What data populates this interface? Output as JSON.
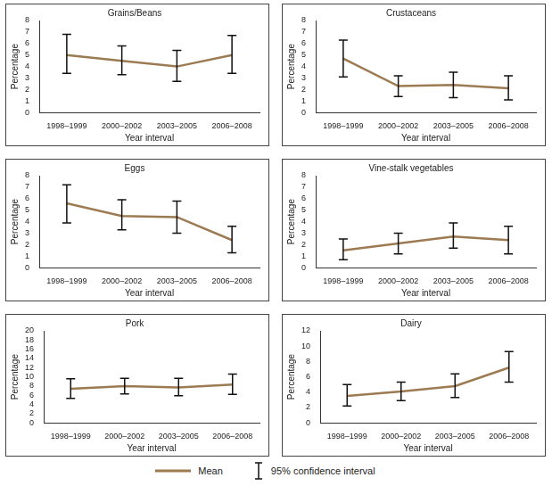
{
  "chart_data": [
    {
      "type": "line",
      "title": "Grains/Beans",
      "x_label": "Year interval",
      "y_label": "Percentage",
      "categories": [
        "1998–1999",
        "2000–2002",
        "2003–2005",
        "2006–2008"
      ],
      "color": "#9c7a52",
      "values": [
        5.0,
        4.5,
        4.0,
        5.0
      ],
      "ci_lower": [
        3.4,
        3.3,
        2.7,
        3.4
      ],
      "ci_upper": [
        6.8,
        5.8,
        5.4,
        6.7
      ],
      "ylim": [
        0,
        8
      ],
      "yticks": [
        0,
        1,
        2,
        3,
        4,
        5,
        6,
        7,
        8
      ],
      "grid": false
    },
    {
      "type": "line",
      "title": "Crustaceans",
      "x_label": "Year interval",
      "y_label": "Percentage",
      "categories": [
        "1998–1999",
        "2000–2002",
        "2003–2005",
        "2006–2008"
      ],
      "color": "#9c7a52",
      "values": [
        4.7,
        2.3,
        2.4,
        2.1
      ],
      "ci_lower": [
        3.1,
        1.4,
        1.3,
        1.1
      ],
      "ci_upper": [
        6.3,
        3.2,
        3.5,
        3.2
      ],
      "ylim": [
        0,
        8
      ],
      "yticks": [
        0,
        1,
        2,
        3,
        4,
        5,
        6,
        7,
        8
      ],
      "grid": false
    },
    {
      "type": "line",
      "title": "Eggs",
      "x_label": "Year interval",
      "y_label": "Percentage",
      "categories": [
        "1998–1999",
        "2000–2002",
        "2003–2005",
        "2006–2008"
      ],
      "color": "#9c7a52",
      "values": [
        5.6,
        4.5,
        4.4,
        2.4
      ],
      "ci_lower": [
        3.9,
        3.3,
        3.0,
        1.3
      ],
      "ci_upper": [
        7.2,
        5.9,
        5.8,
        3.6
      ],
      "ylim": [
        0,
        8
      ],
      "yticks": [
        0,
        1,
        2,
        3,
        4,
        5,
        6,
        7,
        8
      ],
      "grid": false
    },
    {
      "type": "line",
      "title": "Vine-stalk vegetables",
      "x_label": "Year interval",
      "y_label": "Percentage",
      "categories": [
        "1998–1999",
        "2000–2002",
        "2003–2005",
        "2006–2008"
      ],
      "color": "#9c7a52",
      "values": [
        1.5,
        2.1,
        2.7,
        2.4
      ],
      "ci_lower": [
        0.7,
        1.2,
        1.7,
        1.2
      ],
      "ci_upper": [
        2.5,
        3.0,
        3.9,
        3.6
      ],
      "ylim": [
        0,
        8
      ],
      "yticks": [
        0,
        1,
        2,
        3,
        4,
        5,
        6,
        7,
        8
      ],
      "grid": false
    },
    {
      "type": "line",
      "title": "Pork",
      "x_label": "Year interval",
      "y_label": "Percentage",
      "categories": [
        "1998–1999",
        "2000–2002",
        "2003–2005",
        "2006–2008"
      ],
      "color": "#9c7a52",
      "values": [
        7.4,
        8.0,
        7.7,
        8.3
      ],
      "ci_lower": [
        5.3,
        6.3,
        5.9,
        6.2
      ],
      "ci_upper": [
        9.6,
        9.7,
        9.7,
        10.6
      ],
      "ylim": [
        0,
        20
      ],
      "yticks": [
        0,
        2,
        4,
        6,
        8,
        10,
        12,
        14,
        16,
        18,
        20
      ],
      "grid": false
    },
    {
      "type": "line",
      "title": "Dairy",
      "x_label": "Year interval",
      "y_label": "Percentage",
      "categories": [
        "1998–1999",
        "2000–2002",
        "2003–2005",
        "2006–2008"
      ],
      "color": "#9c7a52",
      "values": [
        3.5,
        4.1,
        4.8,
        7.2
      ],
      "ci_lower": [
        2.2,
        2.9,
        3.3,
        5.3
      ],
      "ci_upper": [
        5.0,
        5.3,
        6.4,
        9.3
      ],
      "ylim": [
        0,
        12
      ],
      "yticks": [
        0,
        2,
        4,
        6,
        8,
        10,
        12
      ],
      "grid": false
    }
  ],
  "legend_entries": [
    {
      "label": "Mean",
      "marker": "line",
      "color": "#9c7a52"
    },
    {
      "label": "95% confidence interval",
      "marker": "error_bar",
      "color": "#111111"
    }
  ]
}
